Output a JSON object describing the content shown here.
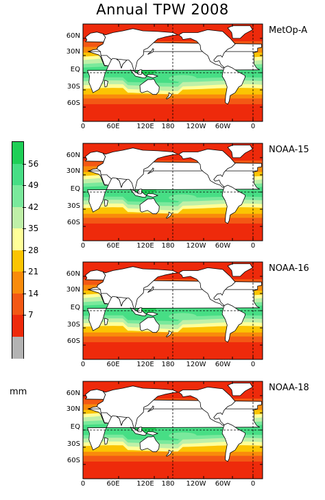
{
  "title": "Annual TPW 2008",
  "unit": "mm",
  "legend": {
    "ticks": [
      "56",
      "49",
      "42",
      "35",
      "28",
      "21",
      "14",
      "7"
    ],
    "colors": [
      "#1fcf57",
      "#47de85",
      "#7ae99c",
      "#bff0a8",
      "#ffff99",
      "#fbc403",
      "#f98b0b",
      "#f35814",
      "#ee2a0b",
      "#b3b3b3"
    ]
  },
  "lat_labels": [
    "60N",
    "30N",
    "EQ",
    "30S",
    "60S"
  ],
  "lon_labels": [
    "0",
    "60E",
    "120E",
    "180",
    "120W",
    "60W",
    "0"
  ],
  "panels": [
    {
      "satellite": "MetOp-A"
    },
    {
      "satellite": "NOAA-15"
    },
    {
      "satellite": "NOAA-16"
    },
    {
      "satellite": "NOAA-18"
    }
  ]
}
